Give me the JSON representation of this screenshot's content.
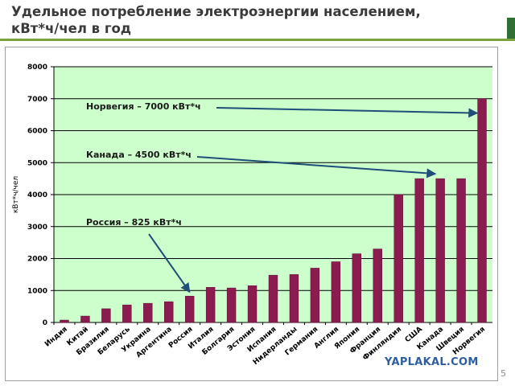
{
  "slide": {
    "title_line1": "Удельное потребление электроэнергии населением,",
    "title_line2": "кВт*ч/чел в год",
    "page_number": "5",
    "watermark": "YAPLAKAL.COM"
  },
  "colors": {
    "plot_background": "#ccffcc",
    "bar_fill": "#8a1c50",
    "arrow": "#1f4e79",
    "gridline": "#000000",
    "accent_green": "#7aa23c",
    "tab_green": "#2f6f31"
  },
  "chart_data": {
    "type": "bar",
    "title": "",
    "xlabel": "",
    "ylabel": "кВт*ч/чел",
    "ylim": [
      0,
      8000
    ],
    "yticks": [
      0,
      1000,
      2000,
      3000,
      4000,
      5000,
      6000,
      7000,
      8000
    ],
    "grid": true,
    "legend": "none",
    "categories": [
      "Индия",
      "Китай",
      "Бразилия",
      "Беларусь",
      "Украина",
      "Аргентина",
      "Россия",
      "Италия",
      "Болгария",
      "Эстония",
      "Испания",
      "Нидерланды",
      "Германия",
      "Англия",
      "Япония",
      "Франция",
      "Финляндия",
      "США",
      "Канада",
      "Швеция",
      "Норвегия"
    ],
    "values": [
      75,
      200,
      430,
      550,
      600,
      650,
      825,
      1100,
      1080,
      1150,
      1480,
      1500,
      1700,
      1900,
      2150,
      2300,
      4000,
      4500,
      4500,
      4500,
      7000
    ],
    "annotations": [
      {
        "text": "Норвегия – 7000 кВт*ч",
        "target_category": "Норвегия",
        "target_value": 6550
      },
      {
        "text": "Канада – 4500 кВт*ч",
        "target_category": "Канада",
        "target_value": 4650
      },
      {
        "text": "Россия – 825 кВт*ч",
        "target_category": "Россия",
        "target_value": 950
      }
    ]
  }
}
